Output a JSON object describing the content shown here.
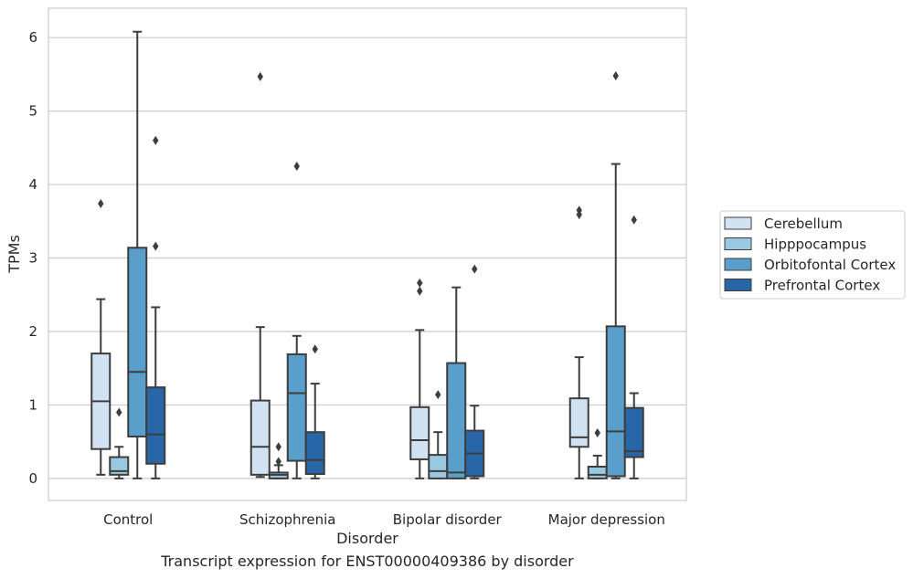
{
  "caption": "Transcript expression for ENST00000409386 by disorder",
  "chart_data": {
    "type": "box",
    "xlabel": "Disorder",
    "ylabel": "TPMs",
    "ylim": [
      -0.3,
      6.4
    ],
    "yticks": [
      0,
      1,
      2,
      3,
      4,
      5,
      6
    ],
    "grid": "horizontal",
    "legend_position": "right",
    "categories": [
      "Control",
      "Schizophrenia",
      "Bipolar disorder",
      "Major depression"
    ],
    "series": [
      {
        "name": "Cerebellum",
        "color": "#d1e2f2",
        "boxes": [
          {
            "whislo": 0.05,
            "q1": 0.4,
            "med": 1.05,
            "q3": 1.7,
            "whishi": 2.44,
            "fliers": [
              3.74
            ]
          },
          {
            "whislo": 0.02,
            "q1": 0.05,
            "med": 0.43,
            "q3": 1.06,
            "whishi": 2.06,
            "fliers": [
              5.47
            ]
          },
          {
            "whislo": 0.0,
            "q1": 0.26,
            "med": 0.52,
            "q3": 0.97,
            "whishi": 2.02,
            "fliers": [
              2.55,
              2.66
            ]
          },
          {
            "whislo": 0.0,
            "q1": 0.43,
            "med": 0.56,
            "q3": 1.09,
            "whishi": 1.65,
            "fliers": [
              3.59,
              3.65
            ]
          }
        ]
      },
      {
        "name": "Hipppocampus",
        "color": "#9ac8e0",
        "boxes": [
          {
            "whislo": 0.0,
            "q1": 0.05,
            "med": 0.1,
            "q3": 0.29,
            "whishi": 0.43,
            "fliers": [
              0.9
            ]
          },
          {
            "whislo": 0.0,
            "q1": 0.0,
            "med": 0.05,
            "q3": 0.08,
            "whishi": 0.18,
            "fliers": [
              0.23,
              0.43
            ]
          },
          {
            "whislo": 0.0,
            "q1": 0.0,
            "med": 0.1,
            "q3": 0.32,
            "whishi": 0.63,
            "fliers": [
              1.14
            ]
          },
          {
            "whislo": 0.0,
            "q1": 0.0,
            "med": 0.05,
            "q3": 0.16,
            "whishi": 0.31,
            "fliers": [
              0.62
            ]
          }
        ]
      },
      {
        "name": "Orbitofontal Cortex",
        "color": "#5a9fcb",
        "boxes": [
          {
            "whislo": 0.0,
            "q1": 0.57,
            "med": 1.45,
            "q3": 3.14,
            "whishi": 6.08,
            "fliers": []
          },
          {
            "whislo": 0.0,
            "q1": 0.24,
            "med": 1.16,
            "q3": 1.69,
            "whishi": 1.94,
            "fliers": [
              4.25
            ]
          },
          {
            "whislo": 0.0,
            "q1": 0.0,
            "med": 0.08,
            "q3": 1.57,
            "whishi": 2.6,
            "fliers": []
          },
          {
            "whislo": 0.0,
            "q1": 0.03,
            "med": 0.64,
            "q3": 2.07,
            "whishi": 4.28,
            "fliers": [
              5.48
            ]
          }
        ]
      },
      {
        "name": "Prefrontal Cortex",
        "color": "#2866a8",
        "boxes": [
          {
            "whislo": 0.0,
            "q1": 0.2,
            "med": 0.6,
            "q3": 1.24,
            "whishi": 2.33,
            "fliers": [
              3.16,
              4.6
            ]
          },
          {
            "whislo": 0.0,
            "q1": 0.06,
            "med": 0.25,
            "q3": 0.63,
            "whishi": 1.29,
            "fliers": [
              1.76
            ]
          },
          {
            "whislo": 0.0,
            "q1": 0.03,
            "med": 0.34,
            "q3": 0.65,
            "whishi": 0.99,
            "fliers": [
              2.85
            ]
          },
          {
            "whislo": 0.0,
            "q1": 0.29,
            "med": 0.37,
            "q3": 0.96,
            "whishi": 1.16,
            "fliers": [
              3.52
            ]
          }
        ]
      }
    ]
  }
}
